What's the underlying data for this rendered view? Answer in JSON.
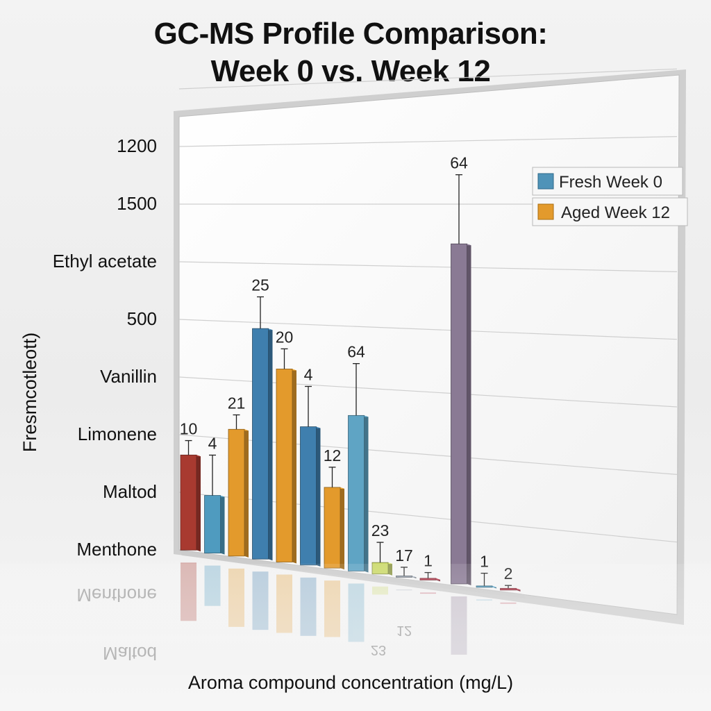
{
  "chart_data": {
    "type": "bar",
    "title_lines": [
      "GC-MS Profile Comparison:",
      "Week 0 vs. Week 12"
    ],
    "xlabel": "Aroma compound concentration (mg/L)",
    "ylabel": "Fresmcotleott)",
    "y_tick_labels": [
      "Menthone",
      "Maltod",
      "Limonene",
      "Vanillin",
      "500",
      "Ethyl acetate",
      "1500",
      "1200"
    ],
    "reflected_labels": [
      "Menthone",
      "Maltod",
      "23",
      "12"
    ],
    "legend": [
      {
        "label": "Fresh Week 0",
        "color": "#4f93b8"
      },
      {
        "label": "Aged Week 12",
        "color": "#e39a2c"
      }
    ],
    "legend_position": "top-right",
    "grid": true,
    "ylim": [
      0,
      8
    ],
    "bars": [
      {
        "label": "10",
        "value": 1.65,
        "error": 0.25,
        "color": "#a83a30"
      },
      {
        "label": "4",
        "value": 1.0,
        "error": 0.7,
        "color": "#4f9bbf"
      },
      {
        "label": "21",
        "value": 2.2,
        "error": 0.25,
        "color": "#e39a2c"
      },
      {
        "label": "25",
        "value": 4.0,
        "error": 0.55,
        "color": "#3f7fae"
      },
      {
        "label": "20",
        "value": 3.35,
        "error": 0.35,
        "color": "#e39a2c"
      },
      {
        "label": "4",
        "value": 2.4,
        "error": 0.7,
        "color": "#3f7fae"
      },
      {
        "label": "12",
        "value": 1.4,
        "error": 0.35,
        "color": "#e39a2c"
      },
      {
        "label": "64",
        "value": 2.7,
        "error": 0.9,
        "color": "#5fa4c4"
      },
      {
        "label": "23",
        "value": 0.2,
        "error": 0.35,
        "color": "#cbd96a"
      },
      {
        "label": "17",
        "value": 0.02,
        "error": 0.15,
        "color": "#9aa4b0"
      },
      {
        "label": "1",
        "value": 0.03,
        "error": 0.1,
        "color": "#b5394b"
      },
      {
        "label": "64",
        "value": 5.9,
        "error": 1.2,
        "color": "#8a7a94"
      },
      {
        "label": "1",
        "value": 0.02,
        "error": 0.22,
        "color": "#4f9bbf"
      },
      {
        "label": "2",
        "value": 0.03,
        "error": 0.05,
        "color": "#b5394b"
      }
    ]
  }
}
